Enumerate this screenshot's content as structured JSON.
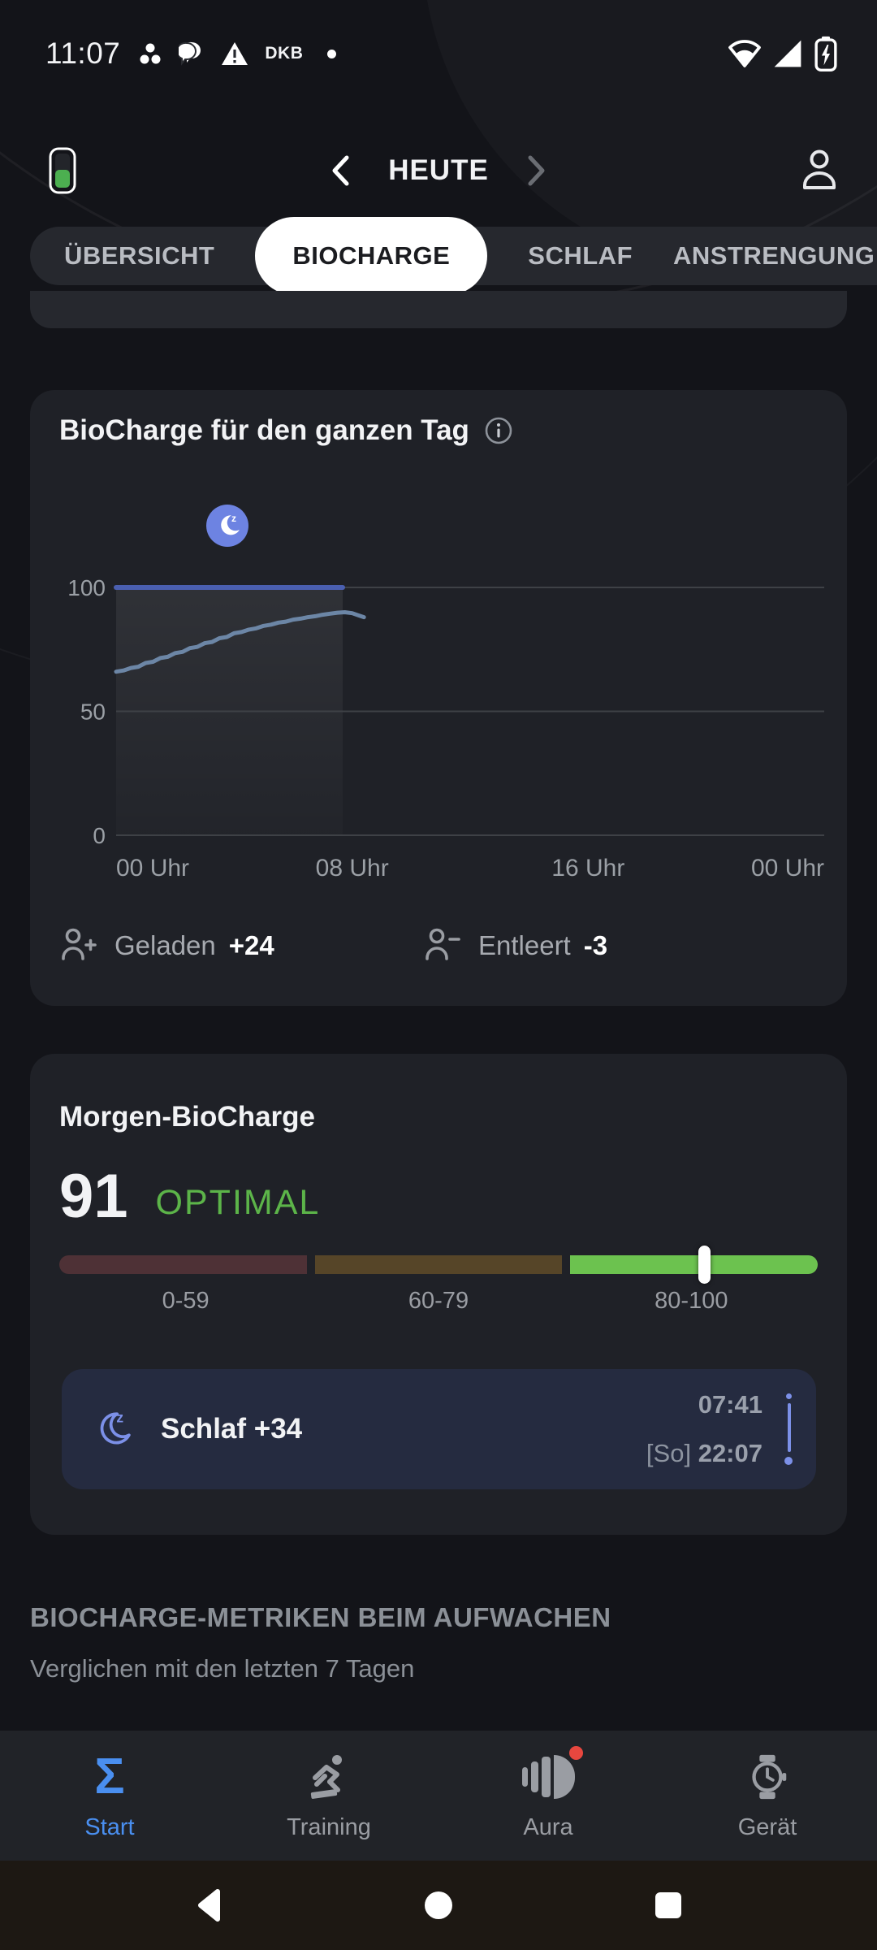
{
  "status_bar": {
    "time": "11:07",
    "carrier_badge": "DKB",
    "notification_icons": [
      "app-dots-icon",
      "chat-bubble-icon",
      "warning-icon"
    ],
    "system_icons": [
      "wifi-icon",
      "signal-icon",
      "battery-charging-icon"
    ]
  },
  "header": {
    "date_label": "HEUTE",
    "icons": [
      "device-battery-icon",
      "chevron-left-icon",
      "chevron-right-icon",
      "profile-icon"
    ]
  },
  "tabs": {
    "items": [
      {
        "label": "ÜBERSICHT",
        "active": false
      },
      {
        "label": "BIOCHARGE",
        "active": true
      },
      {
        "label": "SCHLAF",
        "active": false
      },
      {
        "label": "ANSTRENGUNG",
        "active": false
      }
    ]
  },
  "chart_card": {
    "title": "BioCharge für den ganzen Tag",
    "info_icon": "info-icon",
    "chart_data": {
      "type": "line",
      "title": "BioCharge für den ganzen Tag",
      "x_ticks": [
        "00 Uhr",
        "08 Uhr",
        "16 Uhr",
        "00 Uhr"
      ],
      "x_tick_hours": [
        0,
        8,
        16,
        24
      ],
      "xlim_hours": [
        0,
        24
      ],
      "ylim": [
        0,
        100
      ],
      "y_ticks": [
        0,
        50,
        100
      ],
      "grid": true,
      "sleep_band": {
        "from_hour": 0,
        "to_hour": 7.68,
        "icon": "moon-z-badge"
      },
      "series": [
        {
          "name": "max-line",
          "color": "#4a5fb0",
          "width": 6,
          "points": [
            [
              0,
              100
            ],
            [
              7.68,
              100
            ]
          ]
        },
        {
          "name": "biocharge",
          "color": "#6c86a6",
          "width": 5,
          "points": [
            [
              0,
              66
            ],
            [
              0.25,
              66.5
            ],
            [
              0.5,
              67.5
            ],
            [
              0.75,
              68
            ],
            [
              1,
              69.5
            ],
            [
              1.25,
              70
            ],
            [
              1.5,
              71.5
            ],
            [
              1.75,
              72
            ],
            [
              2,
              73.5
            ],
            [
              2.25,
              74
            ],
            [
              2.5,
              75.5
            ],
            [
              2.75,
              76
            ],
            [
              3,
              77.5
            ],
            [
              3.25,
              78
            ],
            [
              3.5,
              79.5
            ],
            [
              3.75,
              80
            ],
            [
              4,
              81.5
            ],
            [
              4.25,
              82
            ],
            [
              4.5,
              83
            ],
            [
              4.75,
              83.5
            ],
            [
              5,
              84.5
            ],
            [
              5.25,
              85
            ],
            [
              5.5,
              85.8
            ],
            [
              5.75,
              86.2
            ],
            [
              6,
              87
            ],
            [
              6.25,
              87.4
            ],
            [
              6.5,
              88
            ],
            [
              6.75,
              88.4
            ],
            [
              7,
              89
            ],
            [
              7.25,
              89.4
            ],
            [
              7.5,
              89.8
            ],
            [
              7.75,
              90
            ],
            [
              8,
              89.6
            ],
            [
              8.2,
              88.8
            ],
            [
              8.4,
              88
            ]
          ]
        }
      ]
    },
    "legend": [
      {
        "icon": "person-plus-icon",
        "label": "Geladen",
        "value": "+24"
      },
      {
        "icon": "person-minus-icon",
        "label": "Entleert",
        "value": "-3"
      }
    ]
  },
  "morning_card": {
    "title": "Morgen-BioCharge",
    "score": "91",
    "status_label": "OPTIMAL",
    "status_color": "#5cb449",
    "ranges": [
      {
        "label": "0-59",
        "color": "#4e3136"
      },
      {
        "label": "60-79",
        "color": "#564528"
      },
      {
        "label": "80-100",
        "color": "#6cc24f"
      }
    ],
    "marker_value": 91,
    "sleep_row": {
      "icon": "moon-z-icon",
      "label": "Schlaf +34",
      "wake_time": "07:41",
      "bedtime_day": "[So]",
      "bedtime": "22:07",
      "timeline_color": "#7c90e8"
    }
  },
  "section": {
    "title": "BIOCHARGE-METRIKEN BEIM AUFWACHEN",
    "subtitle": "Verglichen mit den letzten 7 Tagen"
  },
  "bottom_nav": {
    "active_color": "#4a8ff0",
    "badge_color": "#e8473f",
    "items": [
      {
        "label": "Start",
        "icon": "sigma-icon",
        "active": true,
        "badge": false
      },
      {
        "label": "Training",
        "icon": "runner-icon",
        "active": false,
        "badge": false
      },
      {
        "label": "Aura",
        "icon": "aura-icon",
        "active": false,
        "badge": true
      },
      {
        "label": "Gerät",
        "icon": "watch-icon",
        "active": false,
        "badge": false
      }
    ]
  },
  "android_nav": {
    "icons": [
      "back-icon",
      "home-icon",
      "recents-icon"
    ]
  }
}
